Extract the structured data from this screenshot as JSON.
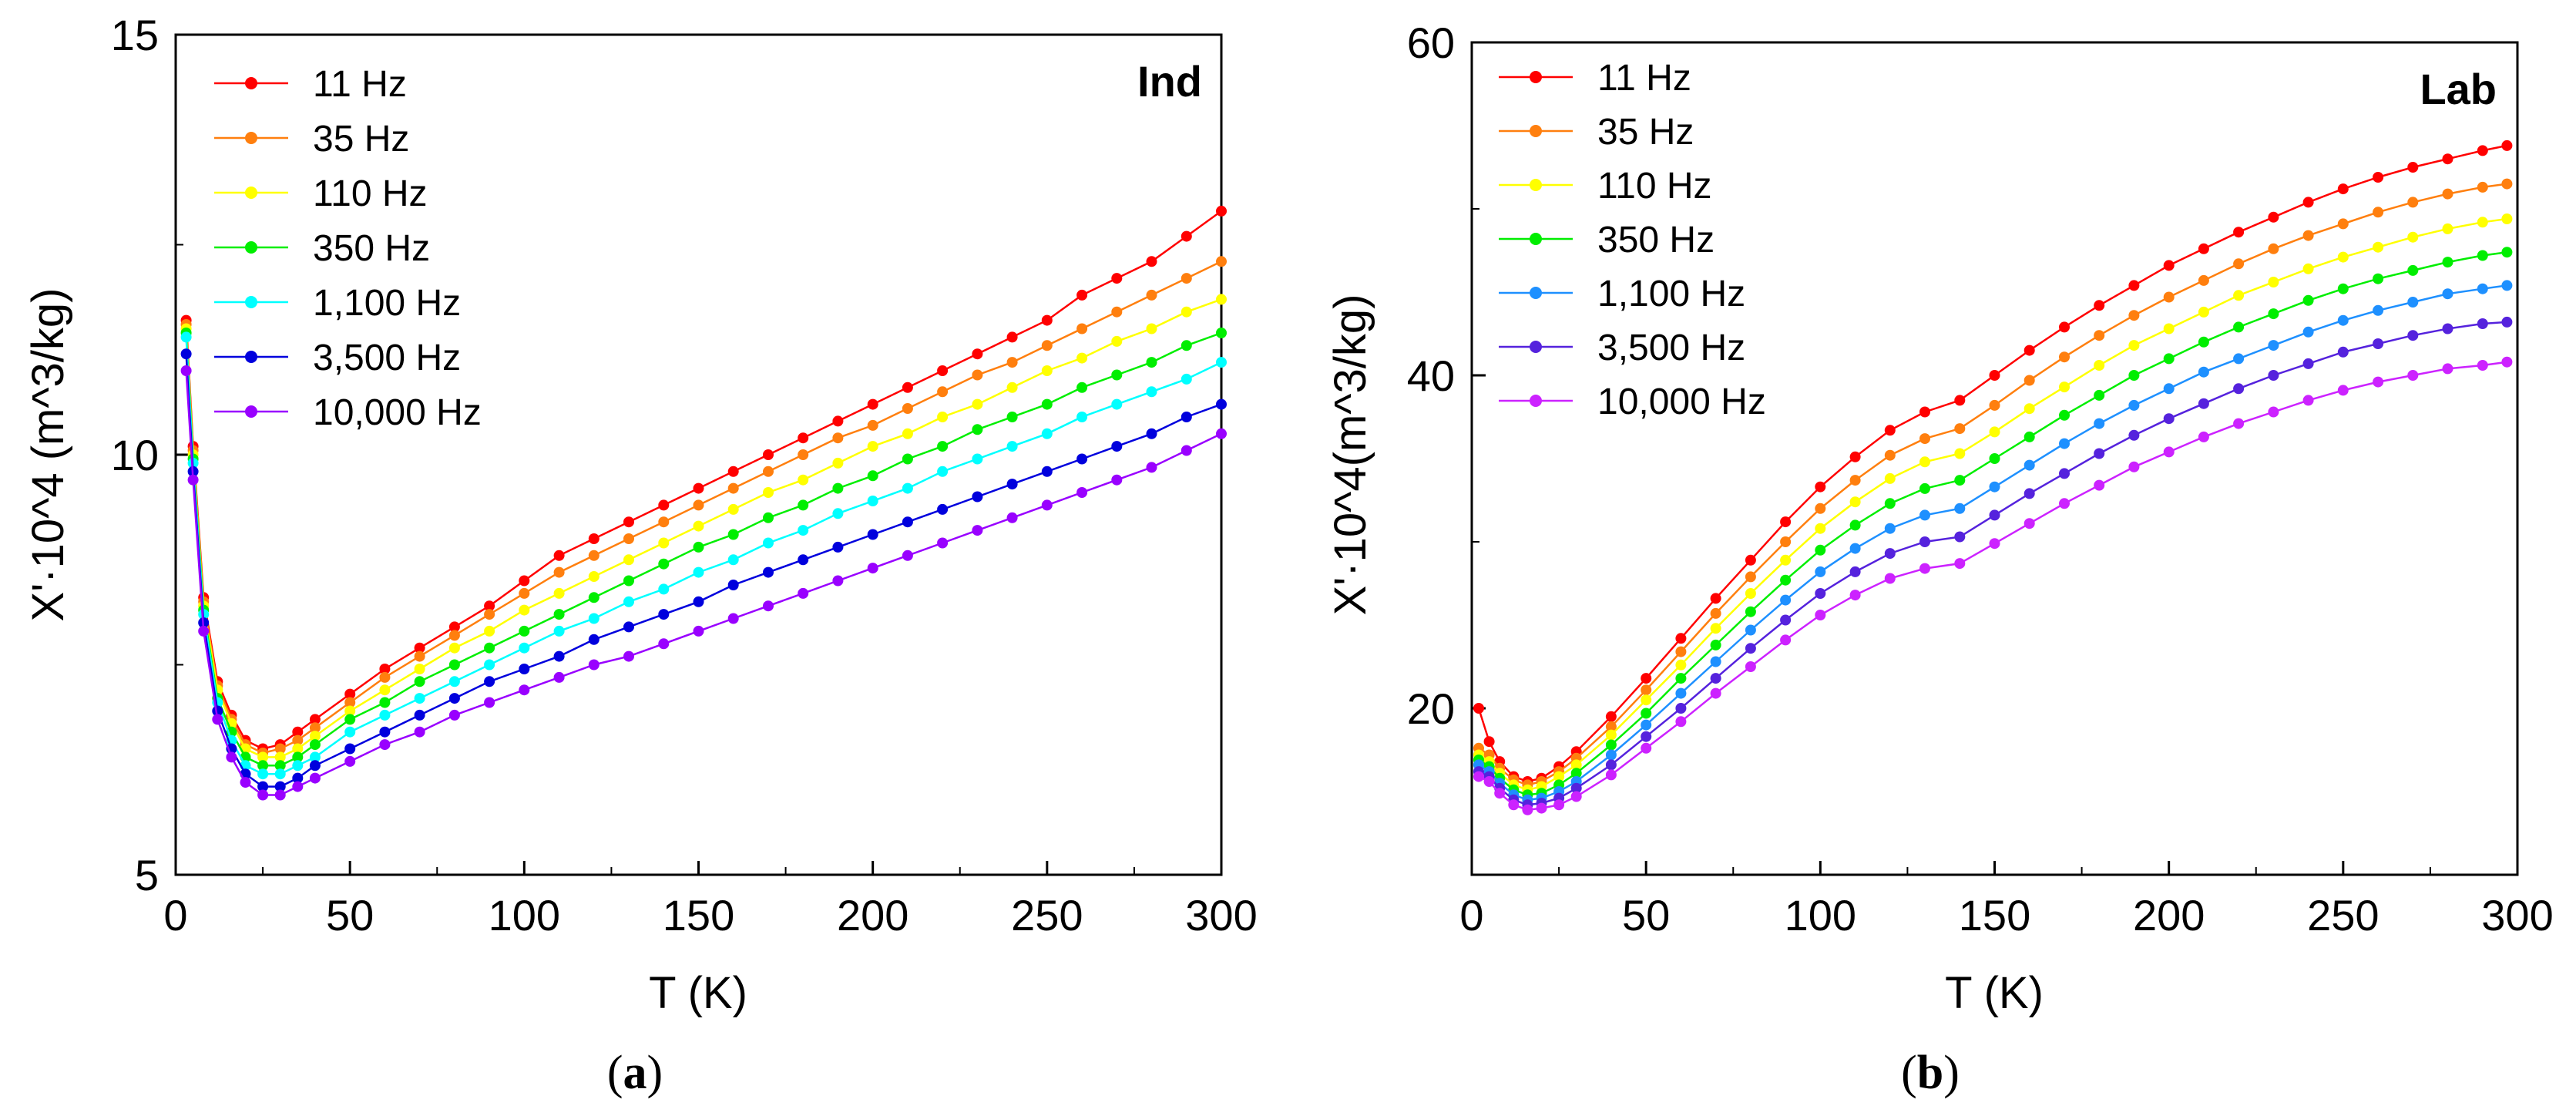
{
  "chart_data": [
    {
      "type": "line",
      "panel": "a",
      "caption_letter": "a",
      "title": "Ind",
      "xlabel": "T (K)",
      "ylabel": "X'·10^4 (m^3/kg)",
      "xlim": [
        0,
        300
      ],
      "ylim": [
        5,
        15
      ],
      "x_ticks": [
        0,
        50,
        100,
        150,
        200,
        250,
        300
      ],
      "y_ticks": [
        5,
        10,
        15
      ],
      "legend_position": "top-left",
      "x": [
        3,
        5,
        8,
        12,
        16,
        20,
        25,
        30,
        35,
        40,
        50,
        60,
        70,
        80,
        90,
        100,
        110,
        120,
        130,
        140,
        150,
        160,
        170,
        180,
        190,
        200,
        210,
        220,
        230,
        240,
        250,
        260,
        270,
        280,
        290,
        300
      ],
      "series": [
        {
          "name": "11 Hz",
          "color": "#ff0000",
          "values": [
            11.6,
            10.1,
            8.3,
            7.3,
            6.9,
            6.6,
            6.5,
            6.55,
            6.7,
            6.85,
            7.15,
            7.45,
            7.7,
            7.95,
            8.2,
            8.5,
            8.8,
            9.0,
            9.2,
            9.4,
            9.6,
            9.8,
            10.0,
            10.2,
            10.4,
            10.6,
            10.8,
            11.0,
            11.2,
            11.4,
            11.6,
            11.9,
            12.1,
            12.3,
            12.6,
            12.9
          ]
        },
        {
          "name": "35 Hz",
          "color": "#ff7f0e",
          "values": [
            11.55,
            10.05,
            8.25,
            7.25,
            6.85,
            6.55,
            6.45,
            6.5,
            6.6,
            6.75,
            7.05,
            7.35,
            7.6,
            7.85,
            8.1,
            8.35,
            8.6,
            8.8,
            9.0,
            9.2,
            9.4,
            9.6,
            9.8,
            10.0,
            10.2,
            10.35,
            10.55,
            10.75,
            10.95,
            11.1,
            11.3,
            11.5,
            11.7,
            11.9,
            12.1,
            12.3
          ]
        },
        {
          "name": "110 Hz",
          "color": "#ffff00",
          "values": [
            11.5,
            10.0,
            8.2,
            7.2,
            6.8,
            6.5,
            6.4,
            6.4,
            6.5,
            6.65,
            6.95,
            7.2,
            7.45,
            7.7,
            7.9,
            8.15,
            8.35,
            8.55,
            8.75,
            8.95,
            9.15,
            9.35,
            9.55,
            9.7,
            9.9,
            10.1,
            10.25,
            10.45,
            10.6,
            10.8,
            11.0,
            11.15,
            11.35,
            11.5,
            11.7,
            11.85
          ]
        },
        {
          "name": "350 Hz",
          "color": "#00ee00",
          "values": [
            11.45,
            9.95,
            8.15,
            7.1,
            6.7,
            6.4,
            6.3,
            6.3,
            6.4,
            6.55,
            6.85,
            7.05,
            7.3,
            7.5,
            7.7,
            7.9,
            8.1,
            8.3,
            8.5,
            8.7,
            8.9,
            9.05,
            9.25,
            9.4,
            9.6,
            9.75,
            9.95,
            10.1,
            10.3,
            10.45,
            10.6,
            10.8,
            10.95,
            11.1,
            11.3,
            11.45
          ]
        },
        {
          "name": "1,100 Hz",
          "color": "#00ffff",
          "values": [
            11.4,
            9.9,
            8.1,
            7.05,
            6.6,
            6.3,
            6.2,
            6.2,
            6.3,
            6.4,
            6.7,
            6.9,
            7.1,
            7.3,
            7.5,
            7.7,
            7.9,
            8.05,
            8.25,
            8.4,
            8.6,
            8.75,
            8.95,
            9.1,
            9.3,
            9.45,
            9.6,
            9.8,
            9.95,
            10.1,
            10.25,
            10.45,
            10.6,
            10.75,
            10.9,
            11.1
          ]
        },
        {
          "name": "3,500 Hz",
          "color": "#0000dd",
          "values": [
            11.2,
            9.8,
            8.0,
            6.95,
            6.5,
            6.2,
            6.05,
            6.05,
            6.15,
            6.3,
            6.5,
            6.7,
            6.9,
            7.1,
            7.3,
            7.45,
            7.6,
            7.8,
            7.95,
            8.1,
            8.25,
            8.45,
            8.6,
            8.75,
            8.9,
            9.05,
            9.2,
            9.35,
            9.5,
            9.65,
            9.8,
            9.95,
            10.1,
            10.25,
            10.45,
            10.6
          ]
        },
        {
          "name": "10,000 Hz",
          "color": "#9900ff",
          "values": [
            11.0,
            9.7,
            7.9,
            6.85,
            6.4,
            6.1,
            5.95,
            5.95,
            6.05,
            6.15,
            6.35,
            6.55,
            6.7,
            6.9,
            7.05,
            7.2,
            7.35,
            7.5,
            7.6,
            7.75,
            7.9,
            8.05,
            8.2,
            8.35,
            8.5,
            8.65,
            8.8,
            8.95,
            9.1,
            9.25,
            9.4,
            9.55,
            9.7,
            9.85,
            10.05,
            10.25
          ]
        }
      ]
    },
    {
      "type": "line",
      "panel": "b",
      "caption_letter": "b",
      "title": "Lab",
      "xlabel": "T (K)",
      "ylabel": "X'·10^4(m^3/kg)",
      "xlim": [
        0,
        300
      ],
      "ylim": [
        10,
        60
      ],
      "x_ticks": [
        0,
        50,
        100,
        150,
        200,
        250,
        300
      ],
      "y_ticks": [
        20,
        40,
        60
      ],
      "legend_position": "top-left",
      "x": [
        2,
        5,
        8,
        12,
        16,
        20,
        25,
        30,
        40,
        50,
        60,
        70,
        80,
        90,
        100,
        110,
        120,
        130,
        140,
        150,
        160,
        170,
        180,
        190,
        200,
        210,
        220,
        230,
        240,
        250,
        260,
        270,
        280,
        290,
        297
      ],
      "series": [
        {
          "name": "11 Hz",
          "color": "#ff0000",
          "values": [
            20.0,
            18.0,
            16.8,
            15.9,
            15.6,
            15.8,
            16.5,
            17.4,
            19.5,
            21.8,
            24.2,
            26.6,
            28.9,
            31.2,
            33.3,
            35.1,
            36.7,
            37.8,
            38.5,
            40.0,
            41.5,
            42.9,
            44.2,
            45.4,
            46.6,
            47.6,
            48.6,
            49.5,
            50.4,
            51.2,
            51.9,
            52.5,
            53.0,
            53.5,
            53.8
          ]
        },
        {
          "name": "35 Hz",
          "color": "#ff7f0e",
          "values": [
            17.6,
            17.2,
            16.4,
            15.7,
            15.4,
            15.6,
            16.2,
            17.0,
            18.9,
            21.1,
            23.4,
            25.7,
            27.9,
            30.0,
            32.0,
            33.7,
            35.2,
            36.2,
            36.8,
            38.2,
            39.7,
            41.1,
            42.4,
            43.6,
            44.7,
            45.7,
            46.7,
            47.6,
            48.4,
            49.1,
            49.8,
            50.4,
            50.9,
            51.3,
            51.5
          ]
        },
        {
          "name": "110 Hz",
          "color": "#ffff00",
          "values": [
            17.2,
            16.8,
            16.1,
            15.4,
            15.1,
            15.3,
            15.9,
            16.6,
            18.4,
            20.5,
            22.6,
            24.8,
            26.9,
            28.9,
            30.8,
            32.4,
            33.8,
            34.8,
            35.3,
            36.6,
            38.0,
            39.3,
            40.6,
            41.8,
            42.8,
            43.8,
            44.8,
            45.6,
            46.4,
            47.1,
            47.7,
            48.3,
            48.8,
            49.2,
            49.4
          ]
        },
        {
          "name": "350 Hz",
          "color": "#00ee00",
          "values": [
            16.9,
            16.5,
            15.8,
            15.1,
            14.8,
            14.9,
            15.4,
            16.1,
            17.8,
            19.7,
            21.8,
            23.8,
            25.8,
            27.7,
            29.5,
            31.0,
            32.3,
            33.2,
            33.7,
            35.0,
            36.3,
            37.6,
            38.8,
            40.0,
            41.0,
            42.0,
            42.9,
            43.7,
            44.5,
            45.2,
            45.8,
            46.3,
            46.8,
            47.2,
            47.4
          ]
        },
        {
          "name": "1,100 Hz",
          "color": "#1e90ff",
          "values": [
            16.6,
            16.2,
            15.5,
            14.8,
            14.5,
            14.6,
            15.0,
            15.6,
            17.2,
            19.0,
            20.9,
            22.8,
            24.7,
            26.5,
            28.2,
            29.6,
            30.8,
            31.6,
            32.0,
            33.3,
            34.6,
            35.9,
            37.1,
            38.2,
            39.2,
            40.2,
            41.0,
            41.8,
            42.6,
            43.3,
            43.9,
            44.4,
            44.9,
            45.2,
            45.4
          ]
        },
        {
          "name": "3,500 Hz",
          "color": "#5522dd",
          "values": [
            16.2,
            15.9,
            15.2,
            14.5,
            14.2,
            14.3,
            14.6,
            15.2,
            16.6,
            18.3,
            20.0,
            21.8,
            23.6,
            25.3,
            26.9,
            28.2,
            29.3,
            30.0,
            30.3,
            31.6,
            32.9,
            34.1,
            35.3,
            36.4,
            37.4,
            38.3,
            39.2,
            40.0,
            40.7,
            41.4,
            41.9,
            42.4,
            42.8,
            43.1,
            43.2
          ]
        },
        {
          "name": "10,000 Hz",
          "color": "#cc22ff",
          "values": [
            15.9,
            15.6,
            14.9,
            14.2,
            13.9,
            14.0,
            14.2,
            14.7,
            16.0,
            17.6,
            19.2,
            20.9,
            22.5,
            24.1,
            25.6,
            26.8,
            27.8,
            28.4,
            28.7,
            29.9,
            31.1,
            32.3,
            33.4,
            34.5,
            35.4,
            36.3,
            37.1,
            37.8,
            38.5,
            39.1,
            39.6,
            40.0,
            40.4,
            40.6,
            40.8
          ]
        }
      ]
    }
  ]
}
